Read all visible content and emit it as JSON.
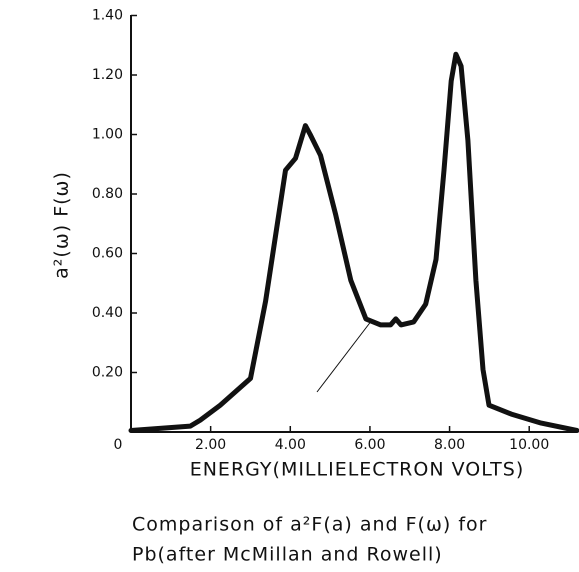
{
  "chart_data": {
    "type": "line",
    "ylabel": "a²(ω) F(ω)",
    "xlabel": "ENERGY(MILLIELECTRON VOLTS)",
    "caption": [
      "Comparison of a²F(a) and F(ω) for",
      "Pb(after McMillan and Rowell)"
    ],
    "xlim": [
      0,
      11.2
    ],
    "ylim": [
      0,
      1.4
    ],
    "xticks": [
      0,
      {
        "value": 2,
        "label": "2.00"
      },
      {
        "value": 4,
        "label": "4.00"
      },
      {
        "value": 6,
        "label": "6.00"
      },
      {
        "value": 8,
        "label": "8.00"
      },
      {
        "value": 10,
        "label": "10.00"
      }
    ],
    "yticks": [
      {
        "value": 0.2,
        "label": "0.20"
      },
      {
        "value": 0.4,
        "label": "0.40"
      },
      {
        "value": 0.6,
        "label": "0.60"
      },
      {
        "value": 0.8,
        "label": "0.80"
      },
      {
        "value": 1.0,
        "label": "1.00"
      },
      {
        "value": 1.2,
        "label": "1.20"
      },
      {
        "value": 1.4,
        "label": "1.40"
      }
    ],
    "color": "#111111",
    "x": [
      0,
      1.49,
      1.74,
      2.24,
      3.0,
      3.38,
      3.88,
      4.13,
      4.38,
      4.5,
      4.76,
      5.14,
      5.52,
      5.9,
      6.27,
      6.52,
      6.65,
      6.78,
      7.1,
      7.4,
      7.66,
      7.86,
      8.04,
      8.16,
      8.29,
      8.46,
      8.66,
      8.84,
      8.99,
      9.55,
      10.3,
      11.2
    ],
    "values": [
      0.005,
      0.02,
      0.04,
      0.09,
      0.18,
      0.44,
      0.88,
      0.92,
      1.03,
      1.0,
      0.93,
      0.73,
      0.51,
      0.38,
      0.36,
      0.36,
      0.38,
      0.36,
      0.37,
      0.43,
      0.58,
      0.88,
      1.18,
      1.27,
      1.23,
      0.98,
      0.51,
      0.21,
      0.09,
      0.06,
      0.03,
      0.005
    ]
  }
}
